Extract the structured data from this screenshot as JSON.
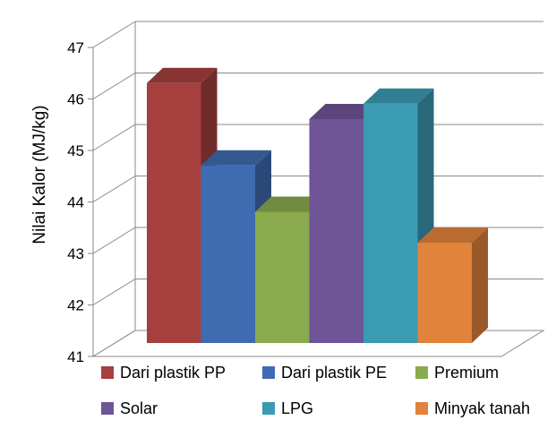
{
  "chart_data": {
    "type": "bar",
    "title": "",
    "xlabel": "",
    "ylabel": "Nilai Kalor (MJ/kg)",
    "ylim": [
      41,
      47
    ],
    "yticks": [
      41,
      42,
      43,
      44,
      45,
      46,
      47
    ],
    "grid": true,
    "legend_position": "bottom",
    "series": [
      {
        "name": "Dari plastik PP",
        "value": 46.5,
        "color": "#A6403E"
      },
      {
        "name": "Dari plastik PE",
        "value": 44.9,
        "color": "#3F6CB1"
      },
      {
        "name": "Premium",
        "value": 44.0,
        "color": "#8AAA4E"
      },
      {
        "name": "Solar",
        "value": 45.8,
        "color": "#6F5497"
      },
      {
        "name": "LPG",
        "value": 46.1,
        "color": "#3A9BB3"
      },
      {
        "name": "Minyak tanah",
        "value": 43.4,
        "color": "#E1833B"
      }
    ]
  }
}
